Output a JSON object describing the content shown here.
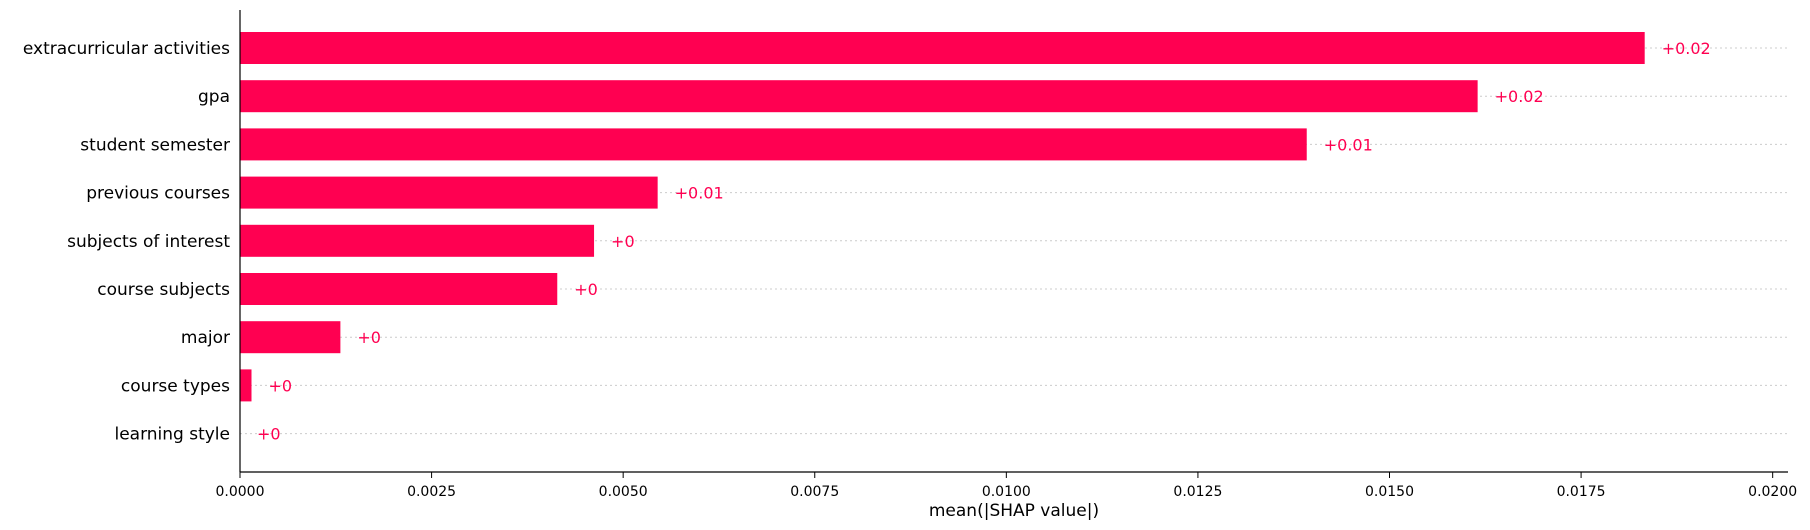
{
  "chart_data": {
    "type": "bar",
    "orientation": "horizontal",
    "categories": [
      "extracurricular activities",
      "gpa",
      "student semester",
      "previous courses",
      "subjects of interest",
      "course subjects",
      "major",
      "course types",
      "learning style"
    ],
    "values": [
      0.01833,
      0.01615,
      0.01392,
      0.00545,
      0.00462,
      0.00414,
      0.00131,
      0.00015,
      0.0
    ],
    "value_labels": [
      "+0.02",
      "+0.02",
      "+0.01",
      "+0.01",
      "+0",
      "+0",
      "+0",
      "+0",
      "+0"
    ],
    "xlabel": "mean(|SHAP value|)",
    "xlim": [
      0,
      0.0202
    ],
    "xticks": [
      0.0,
      0.0025,
      0.005,
      0.0075,
      0.01,
      0.0125,
      0.015,
      0.0175,
      0.02
    ],
    "xtick_labels": [
      "0.0000",
      "0.0025",
      "0.0050",
      "0.0075",
      "0.0100",
      "0.0125",
      "0.0150",
      "0.0175",
      "0.0200"
    ],
    "grid": "horizontal dotted per row",
    "colors": {
      "bar": "#ff0051",
      "value_label": "#ff0051",
      "grid": "#cccccc",
      "axis": "#000000"
    }
  }
}
